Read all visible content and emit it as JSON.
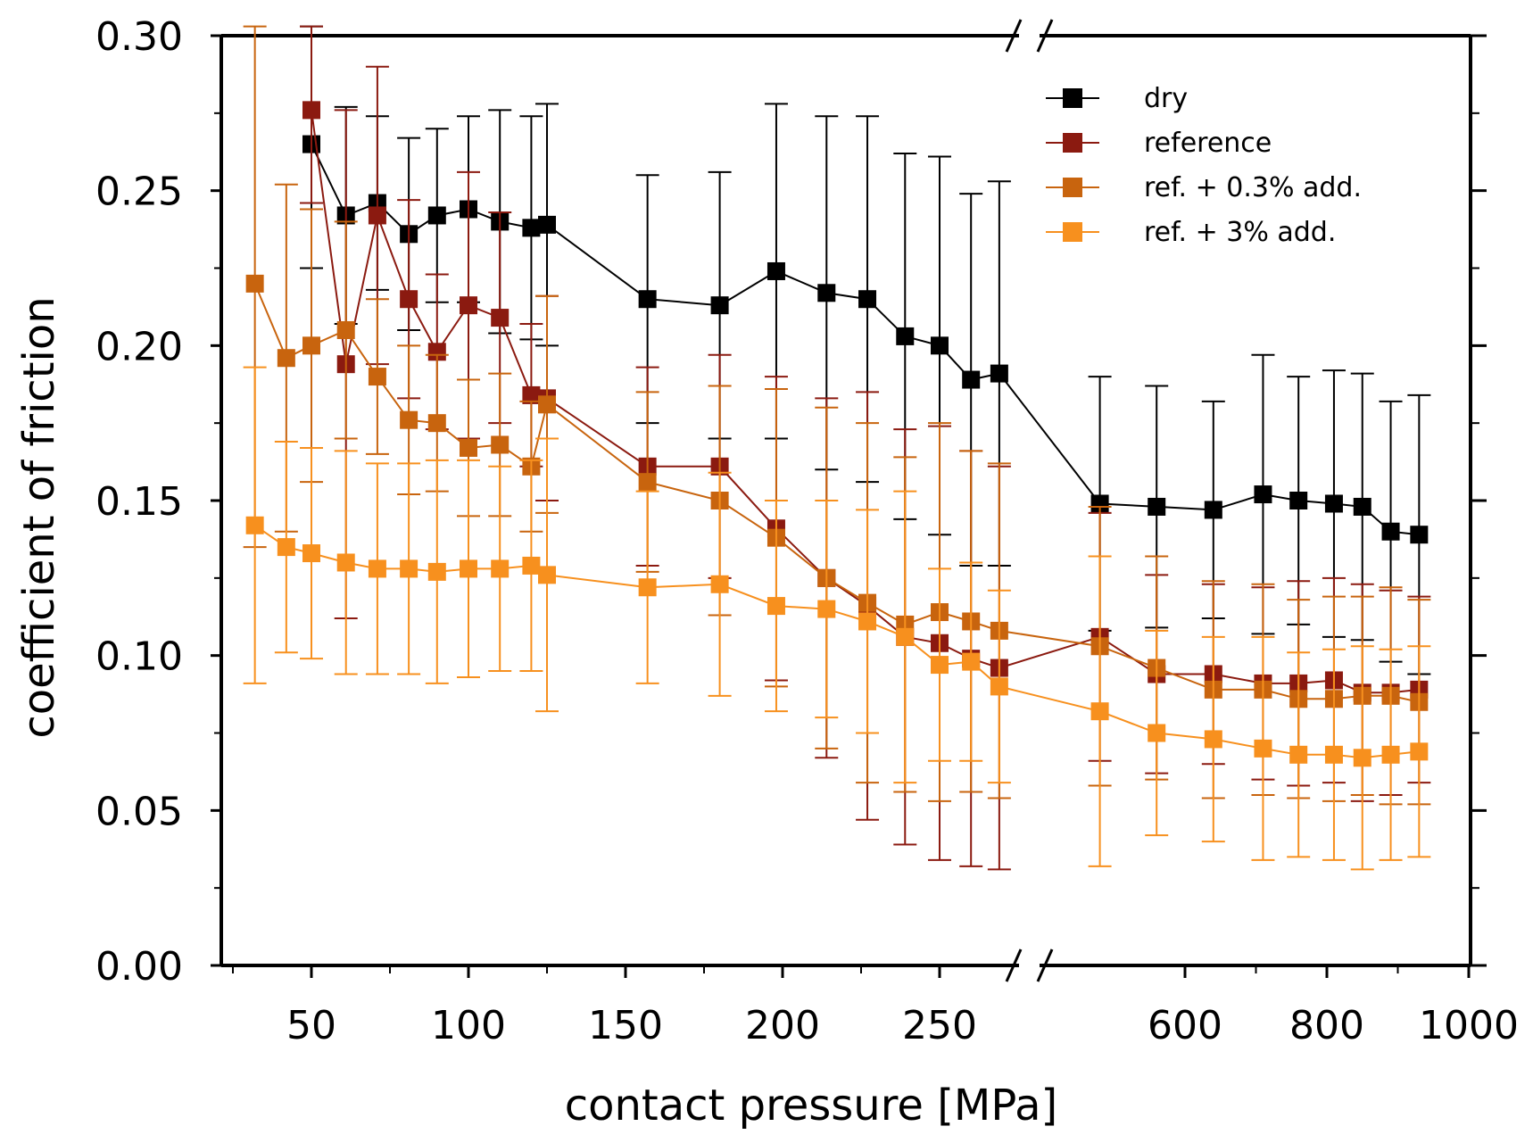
{
  "chart_data": {
    "type": "line",
    "xlabel": "contact pressure [MPa]",
    "ylabel": "coefficient of friction",
    "ylim": [
      0,
      0.3
    ],
    "y_ticks": [
      "0.00",
      "0.05",
      "0.10",
      "0.15",
      "0.20",
      "0.25",
      "0.30"
    ],
    "x_axis_break": "between 280 and 600 MPa",
    "x_ticks_left": [
      50,
      100,
      150,
      200,
      250
    ],
    "x_ticks_right": [
      600,
      800,
      1000
    ],
    "x_tick_labels": [
      "50",
      "100",
      "150",
      "200",
      "250",
      "600",
      "800",
      "1000"
    ],
    "x": [
      32,
      42,
      50,
      61,
      71,
      81,
      90,
      100,
      110,
      120,
      125,
      157,
      180,
      198,
      214,
      227,
      239,
      250,
      260,
      269,
      480,
      560,
      640,
      710,
      760,
      810,
      850,
      890,
      930
    ],
    "legend_position": "top-right",
    "series": [
      {
        "name": "dry",
        "color": "#000000",
        "x": [
          50,
          61,
          71,
          81,
          90,
          100,
          110,
          120,
          125,
          157,
          180,
          198,
          214,
          227,
          239,
          250,
          260,
          269,
          480,
          560,
          640,
          710,
          760,
          810,
          850,
          890,
          930
        ],
        "values": [
          0.265,
          0.242,
          0.246,
          0.236,
          0.242,
          0.244,
          0.24,
          0.238,
          0.239,
          0.215,
          0.213,
          0.224,
          0.217,
          0.215,
          0.203,
          0.2,
          0.189,
          0.191,
          0.149,
          0.148,
          0.147,
          0.152,
          0.15,
          0.149,
          0.148,
          0.14,
          0.139
        ],
        "errors": [
          0.04,
          0.035,
          0.028,
          0.031,
          0.028,
          0.03,
          0.036,
          0.036,
          0.039,
          0.04,
          0.043,
          0.054,
          0.057,
          0.059,
          0.059,
          0.061,
          0.06,
          0.062,
          0.041,
          0.039,
          0.035,
          0.045,
          0.04,
          0.043,
          0.043,
          0.042,
          0.045
        ]
      },
      {
        "name": "reference",
        "color": "#8b1a10",
        "x": [
          50,
          61,
          71,
          81,
          90,
          100,
          110,
          120,
          125,
          157,
          180,
          198,
          214,
          227,
          239,
          250,
          260,
          269,
          480,
          560,
          640,
          710,
          760,
          810,
          850,
          890,
          930
        ],
        "values": [
          0.276,
          0.194,
          0.242,
          0.215,
          0.198,
          0.213,
          0.209,
          0.184,
          0.183,
          0.161,
          0.161,
          0.141,
          0.125,
          0.116,
          0.106,
          0.104,
          0.099,
          0.096,
          0.106,
          0.094,
          0.094,
          0.091,
          0.091,
          0.092,
          0.088,
          0.088,
          0.089
        ],
        "errors": [
          0.03,
          0.082,
          0.048,
          0.032,
          0.025,
          0.043,
          0.034,
          0.023,
          0.033,
          0.032,
          0.036,
          0.049,
          0.058,
          0.069,
          0.067,
          0.07,
          0.067,
          0.065,
          0.04,
          0.032,
          0.029,
          0.031,
          0.033,
          0.033,
          0.035,
          0.033,
          0.03
        ]
      },
      {
        "name": "ref. + 0.3% add.",
        "color": "#c8640e",
        "x": [
          32,
          42,
          50,
          61,
          71,
          81,
          90,
          100,
          110,
          120,
          125,
          157,
          180,
          198,
          214,
          227,
          239,
          250,
          260,
          269,
          480,
          560,
          640,
          710,
          760,
          810,
          850,
          890,
          930
        ],
        "values": [
          0.22,
          0.196,
          0.2,
          0.205,
          0.19,
          0.176,
          0.175,
          0.167,
          0.168,
          0.161,
          0.181,
          0.156,
          0.15,
          0.138,
          0.125,
          0.117,
          0.11,
          0.114,
          0.111,
          0.108,
          0.103,
          0.096,
          0.089,
          0.089,
          0.086,
          0.086,
          0.087,
          0.087,
          0.085
        ],
        "errors": [
          0.085,
          0.056,
          0.044,
          0.035,
          0.025,
          0.024,
          0.022,
          0.022,
          0.023,
          0.021,
          0.035,
          0.029,
          0.037,
          0.048,
          0.055,
          0.058,
          0.054,
          0.061,
          0.055,
          0.054,
          0.045,
          0.036,
          0.035,
          0.034,
          0.032,
          0.033,
          0.032,
          0.035,
          0.033
        ]
      },
      {
        "name": "ref. + 3% add.",
        "color": "#f7901e",
        "x": [
          32,
          42,
          50,
          61,
          71,
          81,
          90,
          100,
          110,
          120,
          125,
          157,
          180,
          198,
          214,
          227,
          239,
          250,
          260,
          269,
          480,
          560,
          640,
          710,
          760,
          810,
          850,
          890,
          930
        ],
        "values": [
          0.142,
          0.135,
          0.133,
          0.13,
          0.128,
          0.128,
          0.127,
          0.128,
          0.128,
          0.129,
          0.126,
          0.122,
          0.123,
          0.116,
          0.115,
          0.111,
          0.106,
          0.097,
          0.098,
          0.09,
          0.082,
          0.075,
          0.073,
          0.07,
          0.068,
          0.068,
          0.067,
          0.068,
          0.069
        ],
        "errors": [
          0.051,
          0.034,
          0.034,
          0.036,
          0.034,
          0.034,
          0.036,
          0.035,
          0.033,
          0.034,
          0.044,
          0.031,
          0.036,
          0.034,
          0.035,
          0.036,
          0.047,
          0.031,
          0.032,
          0.031,
          0.05,
          0.033,
          0.033,
          0.036,
          0.033,
          0.034,
          0.036,
          0.034,
          0.034
        ]
      }
    ]
  }
}
